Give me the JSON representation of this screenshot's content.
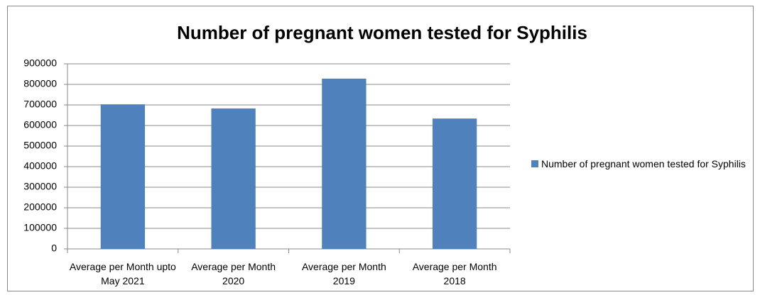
{
  "chart_data": {
    "type": "bar",
    "title": "Number of pregnant women tested for Syphilis",
    "categories": [
      "Average per Month upto May 2021",
      "Average per Month 2020",
      "Average per Month 2019",
      "Average per Month 2018"
    ],
    "series": [
      {
        "name": "Number of pregnant women tested for Syphilis",
        "color": "#4f81bd",
        "values": [
          703000,
          683000,
          828000,
          634000
        ]
      }
    ],
    "ylim": [
      0,
      900000
    ],
    "yticks": [
      0,
      100000,
      200000,
      300000,
      400000,
      500000,
      600000,
      700000,
      800000,
      900000
    ],
    "grid": true,
    "legend": "right"
  }
}
